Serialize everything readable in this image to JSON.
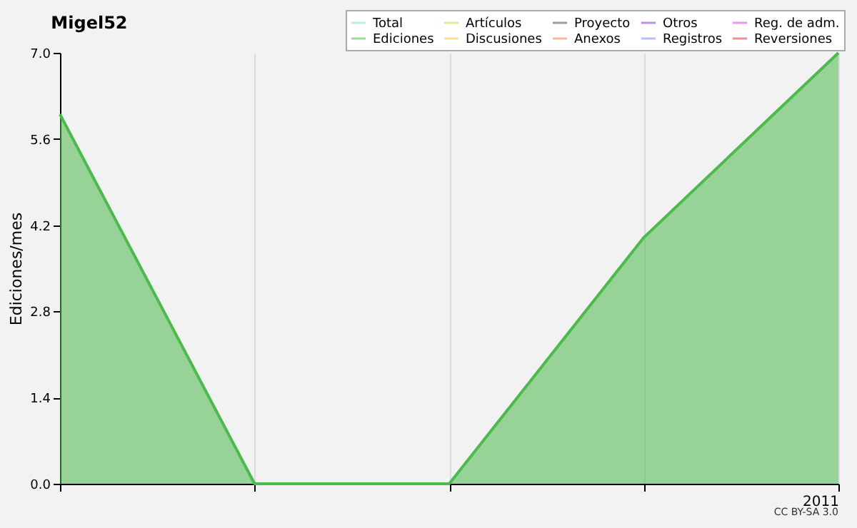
{
  "chart_data": {
    "type": "area",
    "title": "Migel52",
    "ylabel": "Ediciones/mes",
    "categories": [
      null,
      null,
      null,
      null,
      "2011"
    ],
    "series": [
      {
        "name": "Total",
        "color": "#88e0e0",
        "type": "line",
        "values": [
          null,
          null,
          null,
          null,
          null
        ]
      },
      {
        "name": "Ediciones",
        "color": "#4cba4c",
        "values": [
          6,
          0,
          0,
          4,
          7
        ]
      },
      {
        "name": "Artículos",
        "color": "#b8e830",
        "type": "line",
        "values": [
          null,
          null,
          null,
          null,
          null
        ]
      },
      {
        "name": "Discusiones",
        "color": "#f8c830",
        "type": "line",
        "values": [
          null,
          null,
          null,
          null,
          null
        ]
      },
      {
        "name": "Proyecto",
        "color": "#505050",
        "type": "line",
        "values": [
          null,
          null,
          null,
          null,
          null
        ]
      },
      {
        "name": "Anexos",
        "color": "#f88040",
        "type": "line",
        "values": [
          null,
          null,
          null,
          null,
          null
        ]
      },
      {
        "name": "Otros",
        "color": "#9030e0",
        "type": "line",
        "values": [
          null,
          null,
          null,
          null,
          null
        ]
      },
      {
        "name": "Registros",
        "color": "#7090f8",
        "type": "line",
        "values": [
          null,
          null,
          null,
          null,
          null
        ]
      },
      {
        "name": "Reg. de adm.",
        "color": "#e040f0",
        "type": "line",
        "values": [
          null,
          null,
          null,
          null,
          null
        ]
      },
      {
        "name": "Reversiones",
        "color": "#f03030",
        "type": "line",
        "values": [
          null,
          null,
          null,
          null,
          null
        ]
      }
    ],
    "ylim": [
      0,
      7
    ],
    "yticks": [
      {
        "value": 0,
        "label": "0.0"
      },
      {
        "value": 1.4,
        "label": "1.4"
      },
      {
        "value": 2.8,
        "label": "2.8"
      },
      {
        "value": 4.2,
        "label": "4.2"
      },
      {
        "value": 5.6,
        "label": "5.6"
      },
      {
        "value": 7,
        "label": "7.0"
      }
    ],
    "grid": "x",
    "legend": "top right",
    "annotations": [
      "CC BY-SA 3.0"
    ]
  }
}
